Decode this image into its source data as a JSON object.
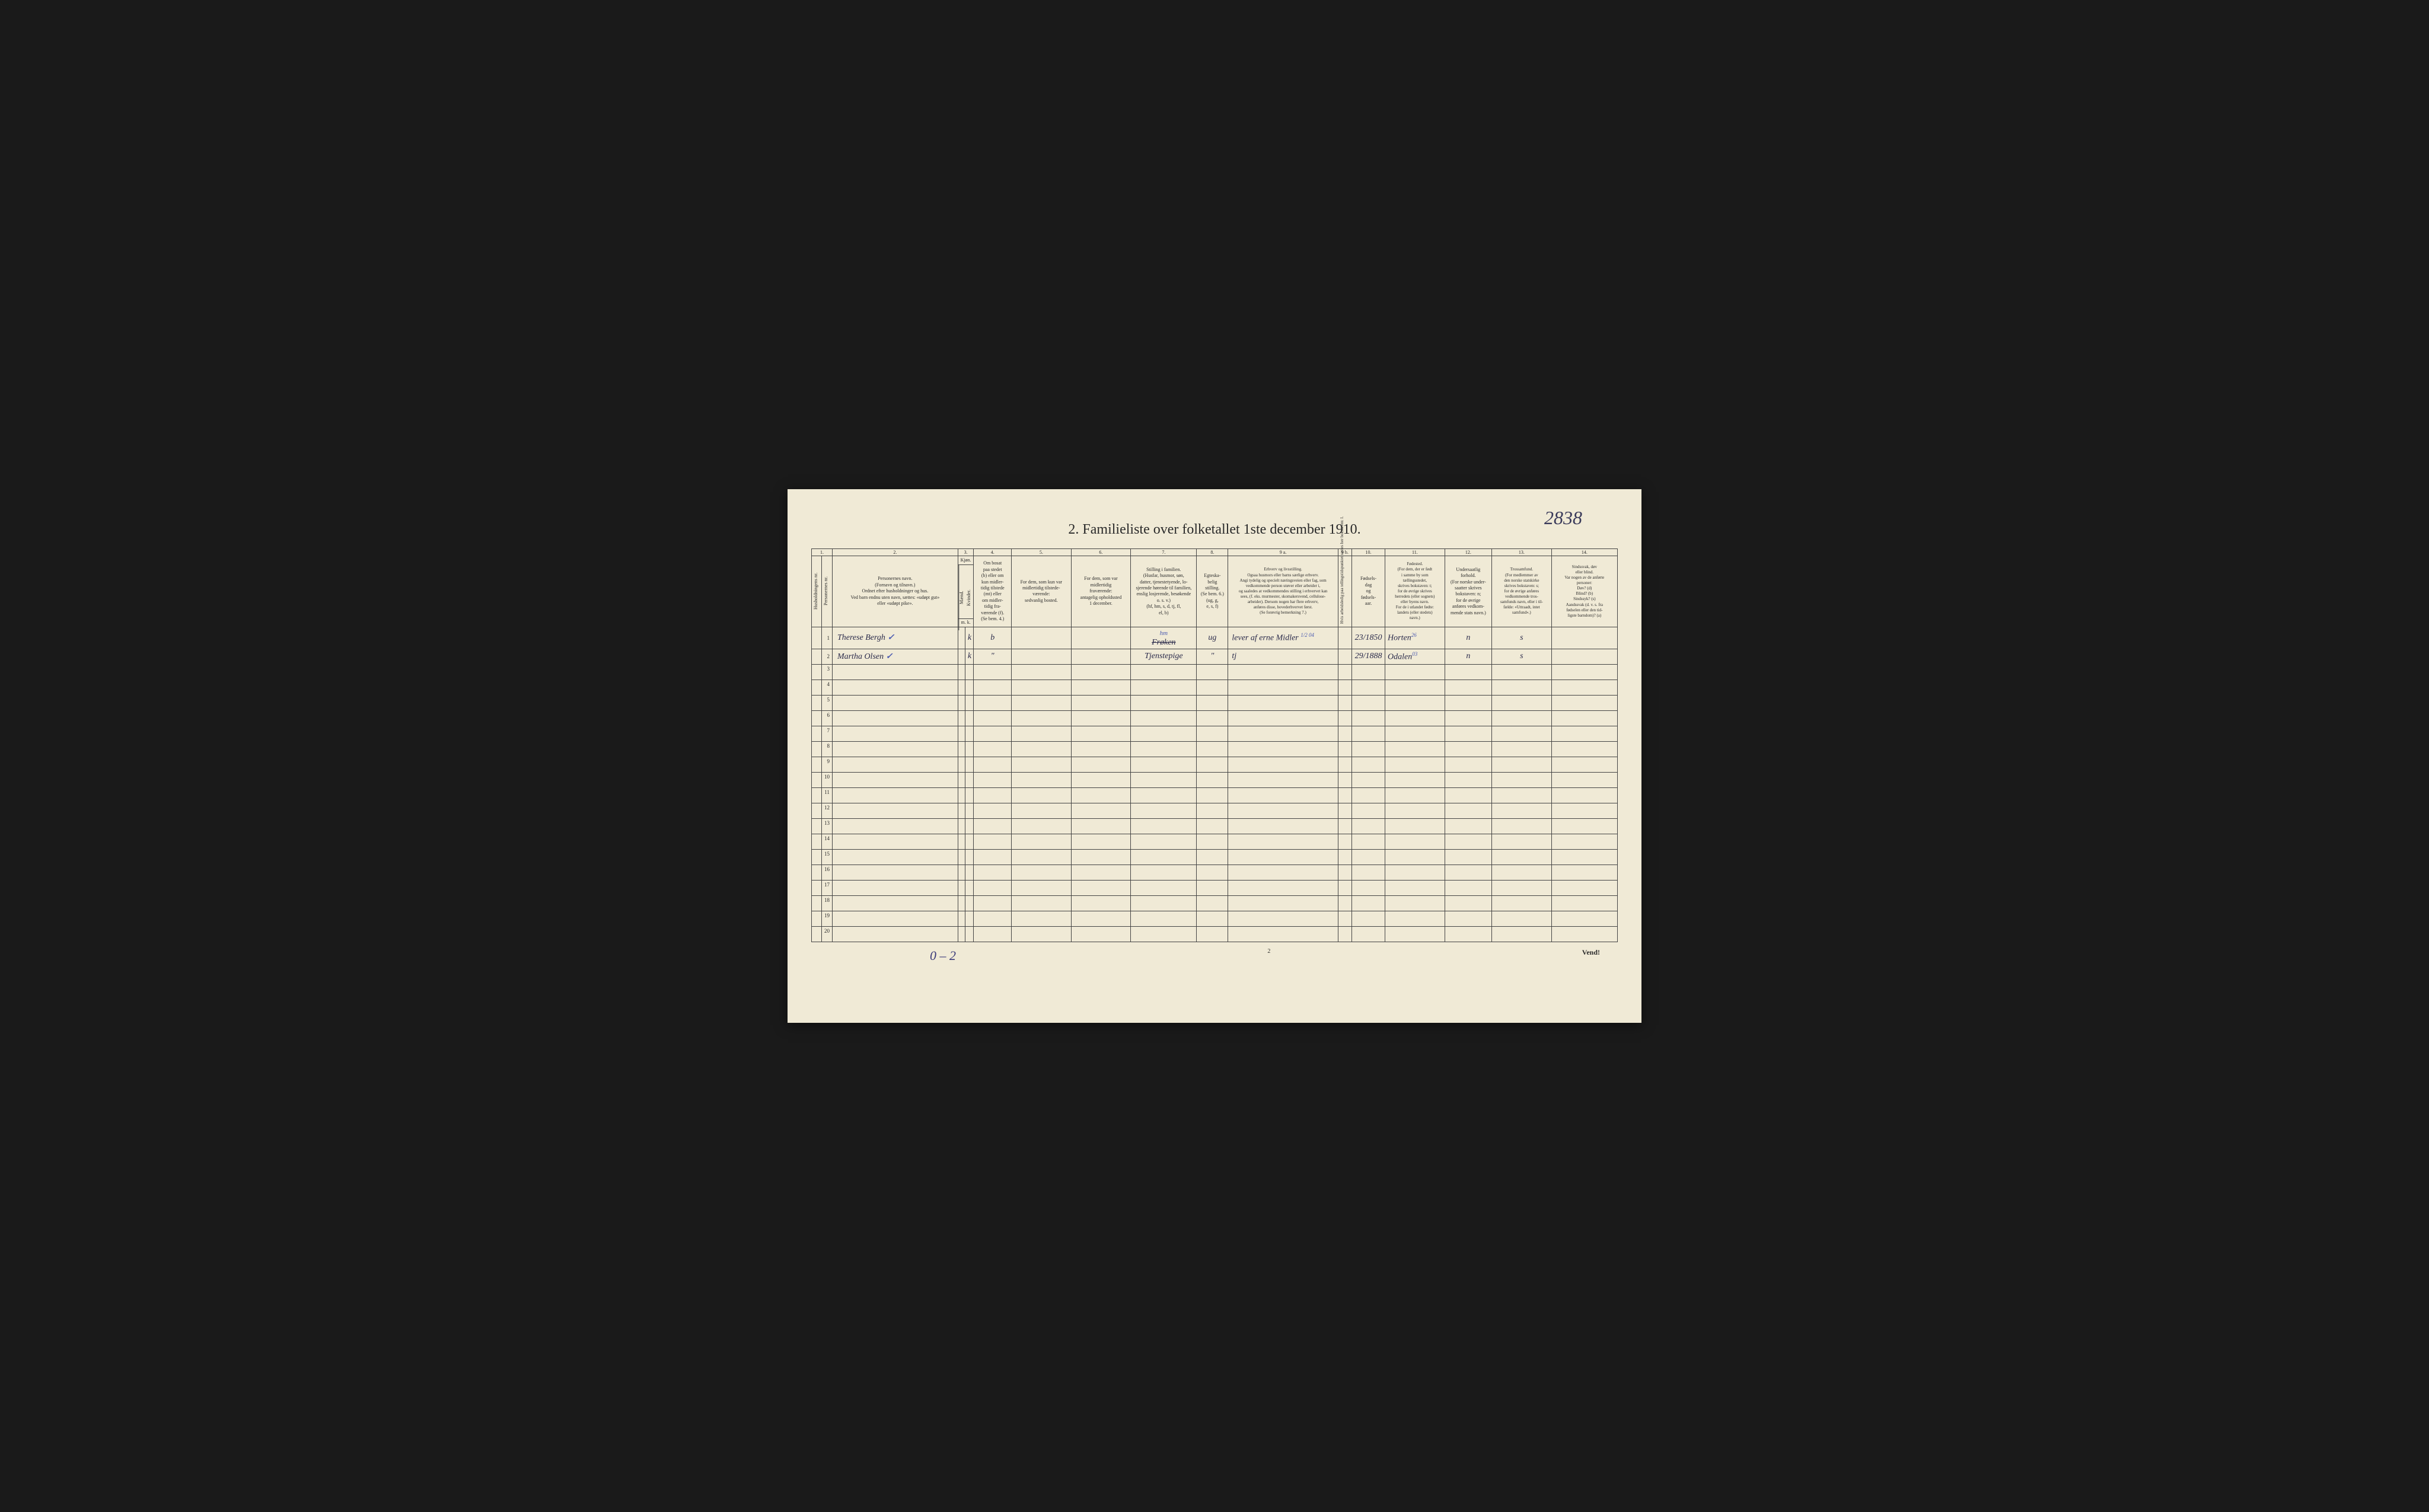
{
  "page": {
    "background_color": "#f0ead6",
    "border_color": "#444444",
    "text_color": "#2a2a2a",
    "handwriting_color": "#2a2a4a",
    "correction_color": "#4a5ab0"
  },
  "topright_handwritten": "2838",
  "title": "2. Familieliste over folketallet 1ste december 1910.",
  "column_numbers": [
    "1.",
    "2.",
    "3.",
    "4.",
    "5.",
    "6.",
    "7.",
    "8.",
    "9 a.",
    "9 b.",
    "10.",
    "11.",
    "12.",
    "13.",
    "14."
  ],
  "headers": {
    "col1a": "Husholdningens nr.",
    "col1b": "Personernes nr.",
    "col2": "Personernes navn.\n(Fornavn og tilnavn.)\nOrdnet efter husholdninger og hus.\nVed barn endnu uten navn, sættes: «udøpt gut»\neller «udøpt pike».",
    "col3_top": "Kjøn.",
    "col3a": "Mænd.",
    "col3b": "Kvinder.",
    "col3_bottom": "m. k.",
    "col4": "Om bosat\npaa stedet\n(b) eller om\nkun midler-\ntidig tilstede\n(mt) eller\nom midler-\ntidig fra-\nværende (f).\n(Se bem. 4.)",
    "col5": "For dem, som kun var\nmidlertidig tilstede-\nværende:\nsedvanlig bosted.",
    "col6": "For dem, som var\nmidlertidig\nfraværende:\nantagelig opholdssted\n1 december.",
    "col7": "Stilling i familien.\n(Husfar, husmor, søn,\ndatter, tjenestetyende, lo-\nsjerende hørende til familien,\nenslig losjerende, besøkende\no. s. v.)\n(hf, hm, s, d, tj, fl,\nel, b)",
    "col8": "Egteska-\nbelig\nstilling.\n(Se bem. 6.)\n(ug, g,\ne, s, f)",
    "col9a": "Erhverv og livsstilling.\nOgsaa husmors eller barns særlige erhverv.\nAngi tydelig og specielt næringsveien eller fag, som\nvedkommende person utøver eller arbeider i,\nog saaledes at vedkommendes stilling i erhvervet kan\nsees, (f. eks. murmester, skomakersvend, cellulose-\narbeider). Dersom nogen har flere erhverv,\nanføres disse, hovederhvervet først.\n(Se forøvrig bemerkning 7.)",
    "col9b": "Hvis arbeidsledig\npaa tellingstidspunktet sættes\nher bokstaven: l.",
    "col10": "Fødsels-\ndag\nog\nfødsels-\naar.",
    "col11": "Fødested.\n(For dem, der er født\ni samme by som\ntællingsstedet,\nskrives bokstaven: t;\nfor de øvrige skrives\nherredets (eller sognets)\neller byens navn.\nFor de i utlandet fødte:\nlandets (eller stedets)\nnavn.)",
    "col12": "Undersaatlig\nforhold.\n(For norske under-\nsaatter skrives\nbokstaven: n;\nfor de øvrige\nanføres vedkom-\nmende stats navn.)",
    "col13": "Trossamfund.\n(For medlemmer av\nden norske statskirke\nskrives bokstaven: s;\nfor de øvrige anføres\nvedkommende tros-\nsamfunds navn, eller i til-\nfælde: «Uttraadt, intet\nsamfund».)",
    "col14": "Sindssvak, døv\neller blind.\nVar nogen av de anførte\npersoner:\nDøv? (d)\nBlind? (b)\nSindssyk? (s)\nAandssvak (d. v. s. fra\nfødselen eller den tid-\nligste barndom)? (a)"
  },
  "rows": [
    {
      "num": "1",
      "name": "Therese Bergh",
      "checkmark": "✓",
      "gender": "k",
      "residence": "b",
      "col5": "",
      "col6": "",
      "family_pos_correction": "hm",
      "family_pos": "Frøken",
      "marital": "ug",
      "occupation": "lever af erne Midler",
      "occupation_super": "1/2 04",
      "col9b": "",
      "birth": "23/1850",
      "birthplace": "Horten",
      "birthplace_super": "26",
      "nationality": "n",
      "religion": "s",
      "col14": ""
    },
    {
      "num": "2",
      "name": "Martha Olsen",
      "checkmark": "✓",
      "gender": "k",
      "residence": "\"",
      "col5": "",
      "col6": "",
      "family_pos": "Tjenstepige",
      "marital": "\"",
      "occupation": "tj",
      "col9b": "",
      "birth": "29/1888",
      "birthplace": "Odalen",
      "birthplace_super": "03",
      "nationality": "n",
      "religion": "s",
      "col14": ""
    }
  ],
  "empty_row_count": 18,
  "bottom": {
    "left_handwritten": "0 – 2",
    "center_pagenum": "2",
    "right_text": "Vend!"
  }
}
